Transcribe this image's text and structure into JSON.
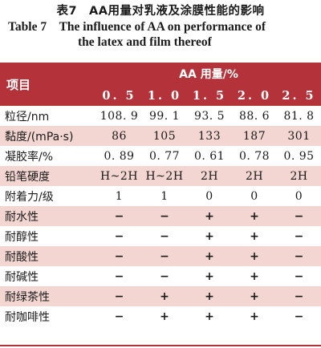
{
  "caption": {
    "cn": "表7　AA用量对乳液及涂膜性能的影响",
    "en_line1": "Table 7　The influence of AA on performance of",
    "en_line2": "the latex and film thereof"
  },
  "table": {
    "row_header": "项目",
    "group_header": "AA 用量/%",
    "columns": [
      "0. 5",
      "1. 0",
      "1. 5",
      "2. 0",
      "2. 5"
    ],
    "rows": [
      {
        "label": "粒径/nm",
        "values": [
          "108. 9",
          "99. 1",
          "93. 5",
          "88. 6",
          "81. 8"
        ]
      },
      {
        "label": "黏度/(mPa·s)",
        "values": [
          "86",
          "105",
          "133",
          "187",
          "301"
        ]
      },
      {
        "label": "凝胶率/%",
        "values": [
          "0. 89",
          "0. 77",
          "0. 61",
          "0. 78",
          "0. 95"
        ]
      },
      {
        "label": "铅笔硬度",
        "values": [
          "H~2H",
          "H~2H",
          "2H",
          "2H",
          "2H"
        ]
      },
      {
        "label": "附着力/级",
        "values": [
          "1",
          "1",
          "0",
          "0",
          "0"
        ]
      },
      {
        "label": "耐水性",
        "values": [
          "−",
          "−",
          "+",
          "+",
          "−"
        ]
      },
      {
        "label": "耐醇性",
        "values": [
          "−",
          "−",
          "+",
          "+",
          "−"
        ]
      },
      {
        "label": "耐酸性",
        "values": [
          "−",
          "−",
          "+",
          "+",
          "−"
        ]
      },
      {
        "label": "耐碱性",
        "values": [
          "−",
          "−",
          "+",
          "+",
          "−"
        ]
      },
      {
        "label": "耐绿茶性",
        "values": [
          "−",
          "+",
          "+",
          "+",
          "−"
        ]
      },
      {
        "label": "耐咖啡性",
        "values": [
          "−",
          "+",
          "+",
          "+",
          "−"
        ]
      }
    ]
  },
  "colors": {
    "header_bg": "#b4333a",
    "band_bg": "#f3d6d1"
  }
}
